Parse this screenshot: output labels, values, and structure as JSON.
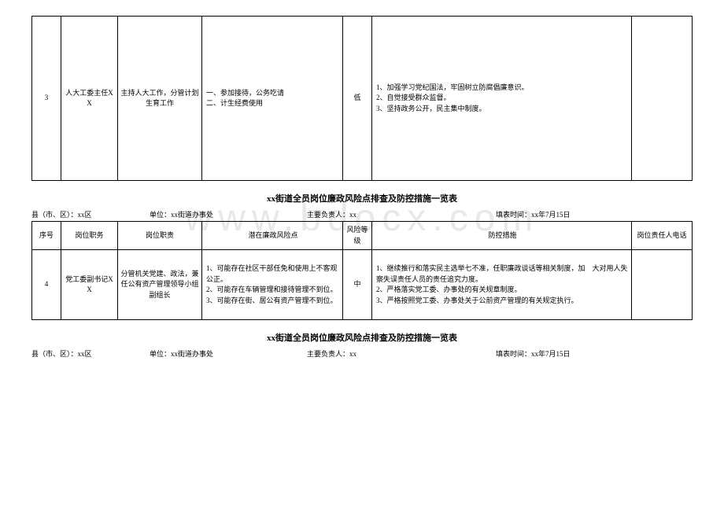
{
  "watermark": "www.bdocx.com",
  "row3": {
    "seq": "3",
    "position": "人大工委主任XX",
    "duty": "主持人大工作，分管计划生育工作",
    "risk": "一、参加接待，公务吃请\n二、计生经费使用",
    "level": "低",
    "measure": "1、加强学习党纪国法，牢固树立防腐倡廉意识。\n2、自觉接受群众监督。\n3、坚持政务公开，民主集中制度。",
    "phone": ""
  },
  "title": "xx街道全员岗位廉政风险点排查及防控措施一览表",
  "meta": {
    "county_label": "县（市、区）：",
    "county_value": "xx区",
    "unit_label": "单位：",
    "unit_value": "xx街道办事处",
    "leader_label": "主要负责人：",
    "leader_value": "xx",
    "time_label": "填表时间：",
    "time_value": "xx年7月15日"
  },
  "headers": {
    "seq": "序号",
    "position": "岗位职务",
    "duty": "岗位职责",
    "risk": "潜在廉政风险点",
    "level": "风险等级",
    "measure": "防控措施",
    "phone": "岗位责任人电话"
  },
  "row4": {
    "seq": "4",
    "position": "党工委副书记XX",
    "duty": "分管机关党建、政法，兼任公有资产管理领导小组副组长",
    "risk": "1、可能存在社区干部任免和使用上不客观公正。\n2、可能存在车辆管理和接待管理不到位。\n3、可能存在街、居公有资产管理不到位。",
    "level": "中",
    "measure": "1、继续推行和落实民主选举七不准，任职廉政谈话等相关制度，加　大对用人失察失误责任人员的责任追究力度。\n2、严格落实党工委、办事处的有关规章制度。\n3、严格按照党工委、办事处关于公前资产管理的有关规定执行。",
    "phone": ""
  }
}
